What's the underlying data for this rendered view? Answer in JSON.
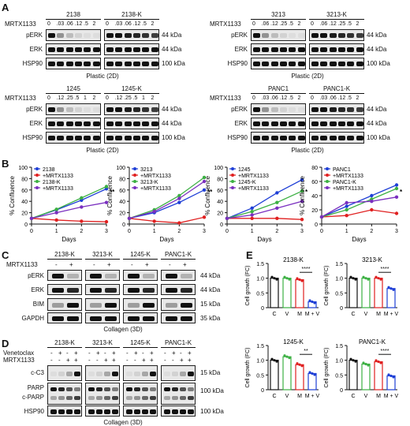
{
  "figure": {
    "panels": {
      "A": {
        "letter": "A",
        "row_labels": [
          "pERK",
          "ERK",
          "HSP90"
        ],
        "mw": [
          "44 kDa",
          "44 kDa",
          "100 kDa"
        ],
        "drug_label": "MRTX1133",
        "groups": [
          {
            "title": "2138",
            "doses": [
              "0",
              ".03",
              ".06",
              ".12",
              ".5",
              "2"
            ]
          },
          {
            "title": "2138-K",
            "doses": [
              "0",
              ".03",
              ".06",
              ".12",
              ".5",
              "2"
            ]
          },
          {
            "title": "3213",
            "doses": [
              "0",
              ".06",
              ".12",
              ".25",
              ".5",
              "2"
            ]
          },
          {
            "title": "3213-K",
            "doses": [
              "0",
              ".06",
              ".12",
              ".25",
              ".5",
              "2"
            ]
          },
          {
            "title": "1245",
            "doses": [
              "0",
              ".12",
              ".25",
              ".5",
              "1",
              "2"
            ]
          },
          {
            "title": "1245-K",
            "doses": [
              "0",
              ".12",
              ".25",
              ".5",
              "1",
              "2"
            ]
          },
          {
            "title": "PANC1",
            "doses": [
              "0",
              ".03",
              ".06",
              ".12",
              ".5",
              "2"
            ]
          },
          {
            "title": "PANC1-K",
            "doses": [
              "0",
              ".03",
              ".06",
              ".12",
              ".5",
              "2"
            ]
          }
        ],
        "footer": "Plastic (2D)"
      },
      "B": {
        "letter": "B",
        "ylabel": "% Confluence",
        "xlabel": "Days",
        "sig": [
          "**",
          "**",
          "*",
          "*"
        ]
      },
      "C": {
        "letter": "C",
        "groups": [
          "2138-K",
          "3213-K",
          "1245-K",
          "PANC1-K"
        ],
        "drug_label": "MRTX1133",
        "signs": [
          "-",
          "+"
        ],
        "row_labels": [
          "pERK",
          "ERK",
          "BIM",
          "GAPDH"
        ],
        "mw": [
          "44 kDa",
          "44 kDa",
          "15 kDa",
          "35 kDa"
        ],
        "footer": "Collagen (3D)"
      },
      "D": {
        "letter": "D",
        "groups": [
          "2138-K",
          "3213-K",
          "1245-K",
          "PANC1-K"
        ],
        "ven_label": "Venetoclax",
        "drug_label": "MRTX1133",
        "ven_signs": [
          "-",
          "+",
          "-",
          "+"
        ],
        "mrtx_signs": [
          "-",
          "-",
          "+",
          "+"
        ],
        "row_labels": [
          "c-C3",
          "PARP",
          "c-PARP",
          "HSP90"
        ],
        "mw": [
          "15 kDa",
          "100 kDa",
          "100 kDa"
        ],
        "footer": "Collagen (3D)"
      },
      "E": {
        "letter": "E",
        "ylabel": "Cell growth (FC)",
        "categories": [
          "C",
          "V",
          "M",
          "M + V"
        ],
        "sig": [
          "****",
          "****",
          "**",
          "****"
        ]
      }
    }
  },
  "chart_data": [
    {
      "type": "line",
      "xlabel": "Days",
      "ylabel": "% Confluence",
      "x": [
        0,
        1,
        2,
        3
      ],
      "ylim": [
        0,
        100
      ],
      "series": [
        {
          "name": "2138",
          "color": "#1f3fd6",
          "values": [
            10,
            25,
            42,
            62
          ]
        },
        {
          "name": "+MRTX1133",
          "color": "#e02020",
          "values": [
            10,
            7,
            5,
            4
          ]
        },
        {
          "name": "2138-K",
          "color": "#3cb043",
          "values": [
            10,
            26,
            46,
            66
          ]
        },
        {
          "name": "+MRTX1133",
          "color": "#7a2fbf",
          "values": [
            10,
            20,
            30,
            38
          ]
        }
      ]
    },
    {
      "type": "line",
      "xlabel": "Days",
      "ylabel": "% Confluence",
      "x": [
        0,
        1,
        2,
        3
      ],
      "ylim": [
        0,
        100
      ],
      "series": [
        {
          "name": "3213",
          "color": "#1f3fd6",
          "values": [
            10,
            20,
            38,
            60
          ]
        },
        {
          "name": "+MRTX1133",
          "color": "#e02020",
          "values": [
            10,
            5,
            2,
            12
          ]
        },
        {
          "name": "3213-K",
          "color": "#3cb043",
          "values": [
            10,
            25,
            50,
            82
          ]
        },
        {
          "name": "+MRTX1133",
          "color": "#7a2fbf",
          "values": [
            10,
            22,
            45,
            75
          ]
        }
      ]
    },
    {
      "type": "line",
      "xlabel": "Days",
      "ylabel": "% Confluence",
      "x": [
        0,
        1,
        2,
        3
      ],
      "ylim": [
        0,
        100
      ],
      "series": [
        {
          "name": "1245",
          "color": "#1f3fd6",
          "values": [
            10,
            28,
            55,
            78
          ]
        },
        {
          "name": "+MRTX1133",
          "color": "#e02020",
          "values": [
            10,
            10,
            10,
            8
          ]
        },
        {
          "name": "1245-K",
          "color": "#3cb043",
          "values": [
            10,
            22,
            38,
            58
          ]
        },
        {
          "name": "+MRTX1133",
          "color": "#7a2fbf",
          "values": [
            10,
            16,
            28,
            40
          ]
        }
      ]
    },
    {
      "type": "line",
      "xlabel": "Days",
      "ylabel": "% Confluence",
      "x": [
        0,
        1,
        2,
        3
      ],
      "ylim": [
        0,
        80
      ],
      "series": [
        {
          "name": "PANC1",
          "color": "#1f3fd6",
          "values": [
            10,
            25,
            40,
            55
          ]
        },
        {
          "name": "+MRTX1133",
          "color": "#e02020",
          "values": [
            10,
            12,
            20,
            15
          ]
        },
        {
          "name": "PANC1-K",
          "color": "#3cb043",
          "values": [
            10,
            20,
            35,
            50
          ]
        },
        {
          "name": "+MRTX1133",
          "color": "#7a2fbf",
          "values": [
            10,
            30,
            32,
            38
          ]
        }
      ]
    },
    {
      "type": "bar",
      "title": "2138-K",
      "ylabel": "Cell growth (FC)",
      "categories": [
        "C",
        "V",
        "M",
        "M + V"
      ],
      "values": [
        1.0,
        1.0,
        0.95,
        0.2
      ],
      "ylim": [
        0,
        1.5
      ]
    },
    {
      "type": "bar",
      "title": "3213-K",
      "ylabel": "Cell growth (FC)",
      "categories": [
        "C",
        "V",
        "M",
        "M + V"
      ],
      "values": [
        1.0,
        1.0,
        1.0,
        0.65
      ],
      "ylim": [
        0,
        1.5
      ]
    },
    {
      "type": "bar",
      "title": "1245-K",
      "ylabel": "Cell growth (FC)",
      "categories": [
        "C",
        "V",
        "M",
        "M + V"
      ],
      "values": [
        1.0,
        1.12,
        0.85,
        0.55
      ],
      "ylim": [
        0,
        1.5
      ]
    },
    {
      "type": "bar",
      "title": "PANC1-K",
      "ylabel": "Cell growth (FC)",
      "categories": [
        "C",
        "V",
        "M",
        "M + V"
      ],
      "values": [
        1.0,
        0.87,
        0.95,
        0.47
      ],
      "ylim": [
        0,
        1.5
      ]
    }
  ]
}
